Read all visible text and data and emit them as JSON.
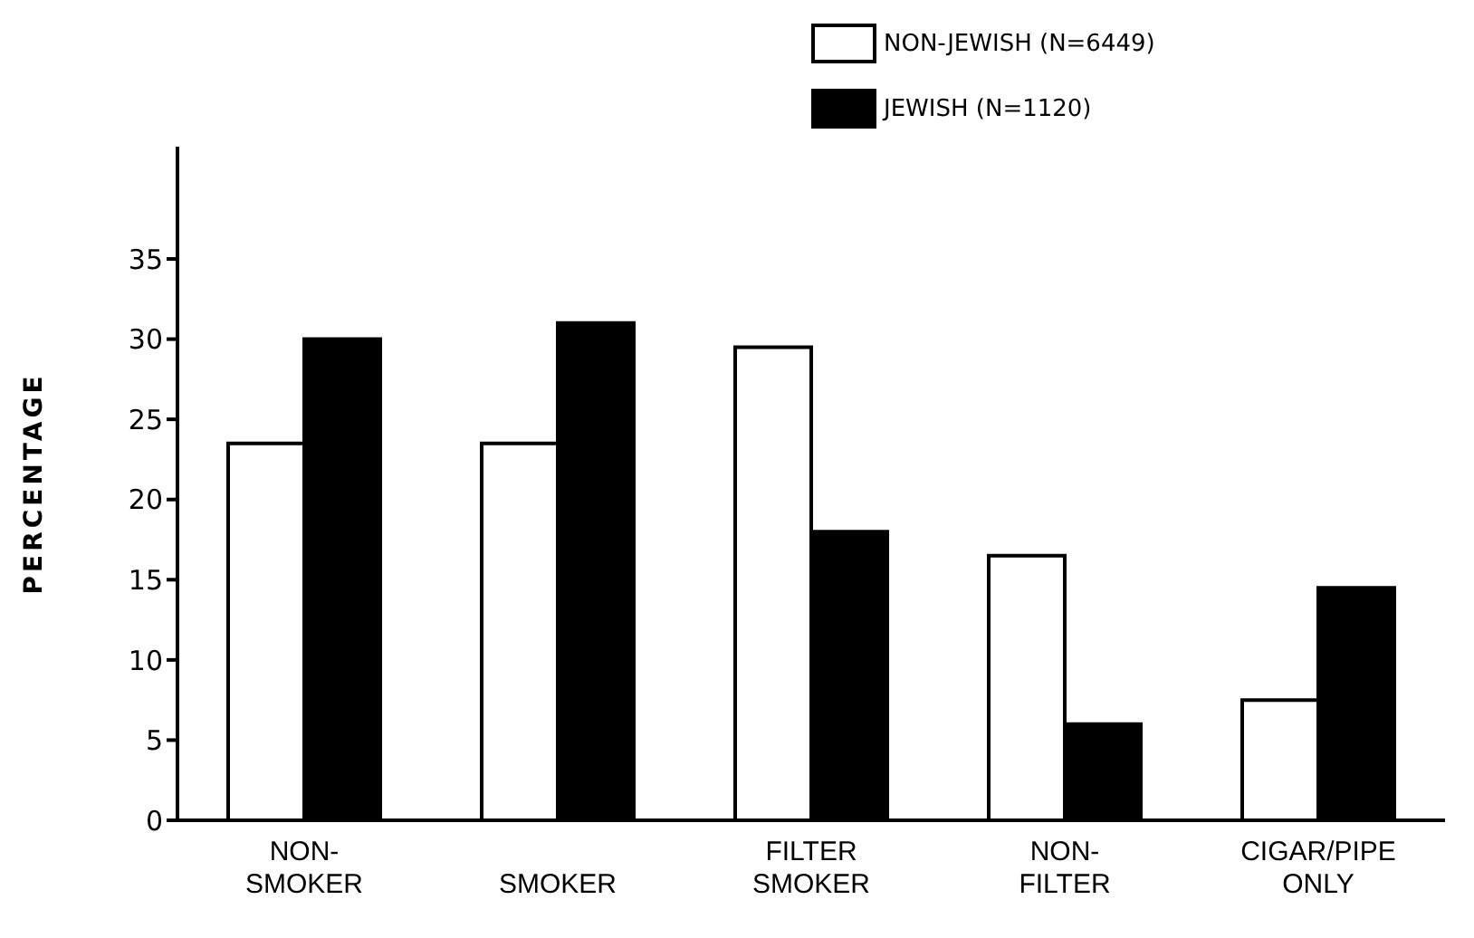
{
  "chart_data": {
    "type": "bar",
    "ylabel": "PERCENTAGE",
    "categories": [
      "NON-SMOKER",
      "SMOKER",
      "FILTER SMOKER",
      "NON-FILTER",
      "CIGAR/PIPE ONLY"
    ],
    "series": [
      {
        "name": "NON-JEWISH (N=6449)",
        "color": "#ffffff",
        "values": [
          23.5,
          23.5,
          29.5,
          16.5,
          7.5
        ]
      },
      {
        "name": "JEWISH (N=1120)",
        "color": "#000000",
        "values": [
          30,
          31,
          18,
          6,
          14.5
        ]
      }
    ],
    "ylim": [
      0,
      42
    ],
    "yticks": [
      0,
      5,
      10,
      15,
      20,
      25,
      30,
      35
    ],
    "grid": false,
    "legend": "top right"
  }
}
